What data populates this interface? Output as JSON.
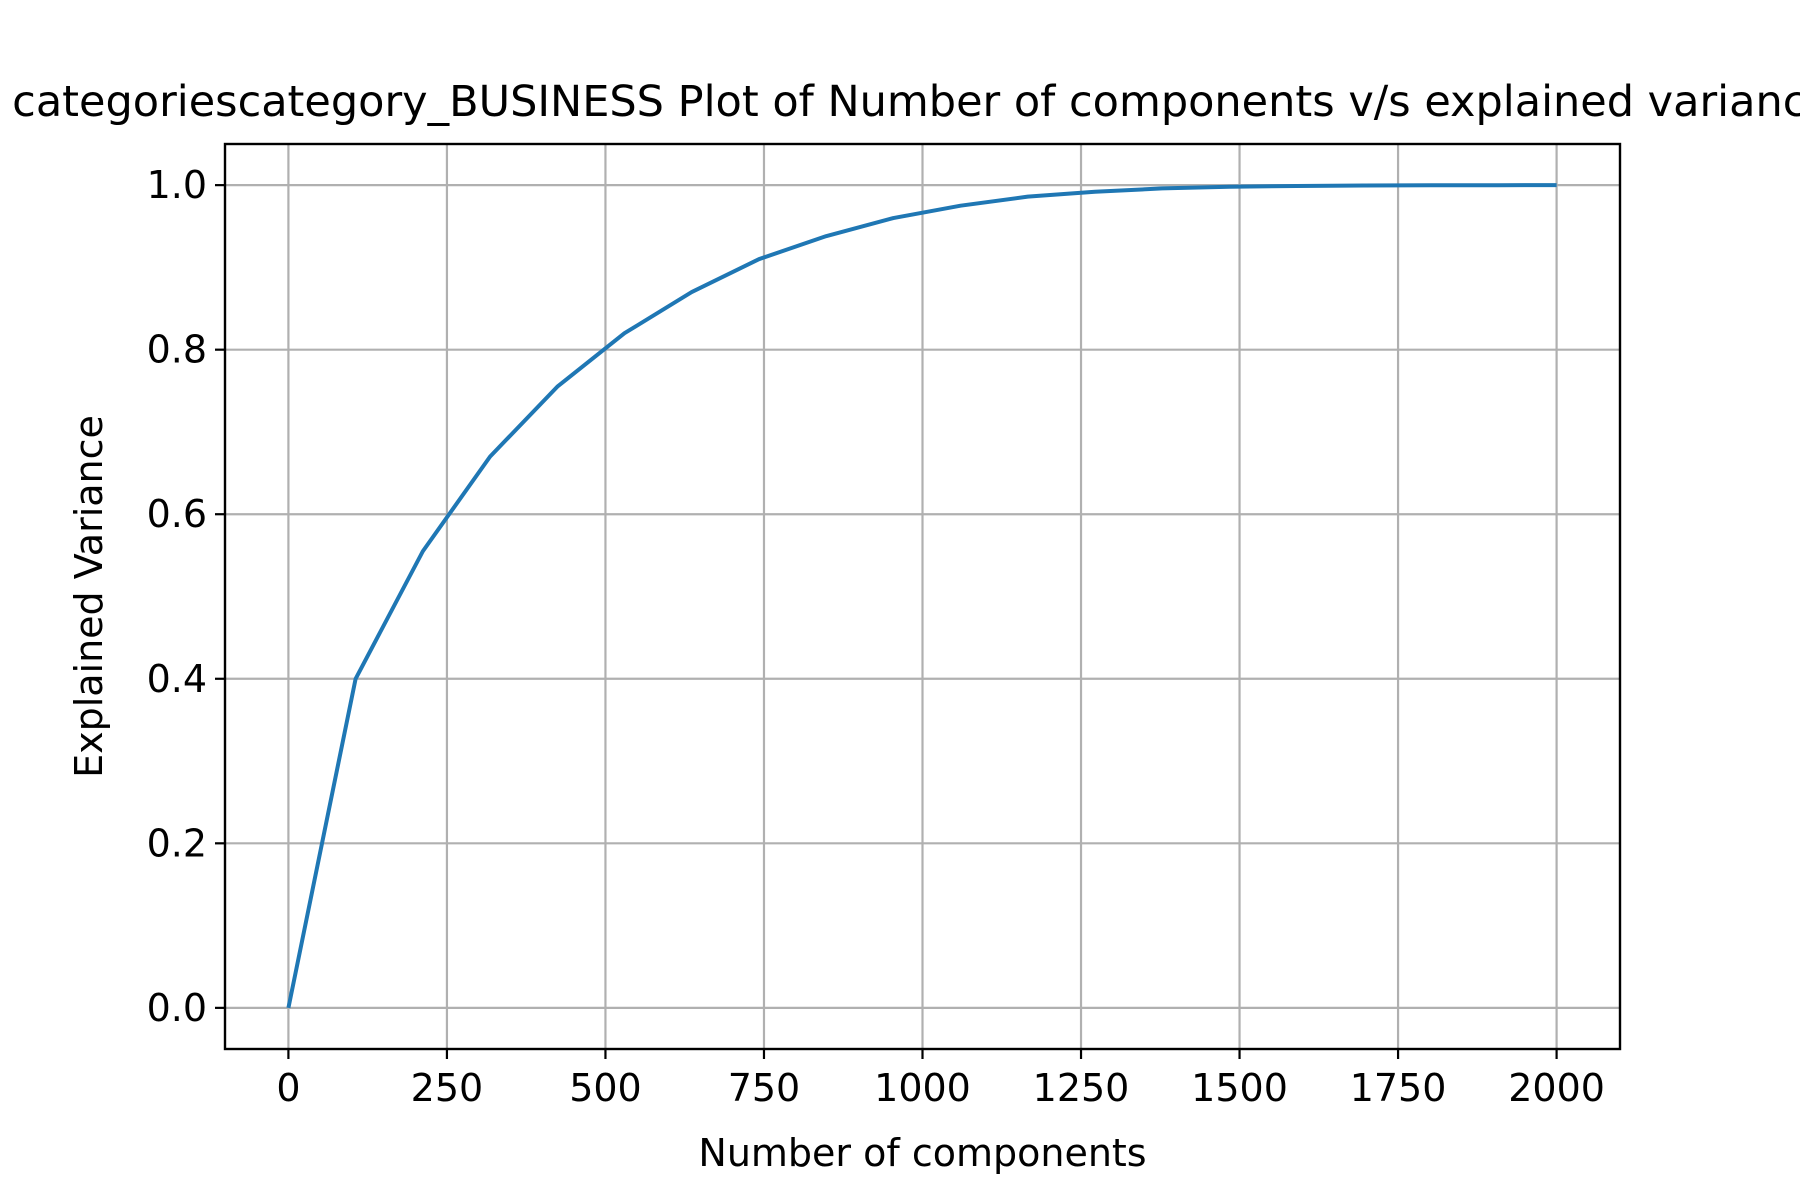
{
  "chart_data": {
    "type": "line",
    "title": "categoriescategory_BUSINESS Plot of Number of components v/s explained variance",
    "xlabel": "Number of components",
    "ylabel": "Explained Variance",
    "xlim": [
      -100,
      2100
    ],
    "ylim": [
      -0.05,
      1.05
    ],
    "x_ticks": [
      0,
      250,
      500,
      750,
      1000,
      1250,
      1500,
      1750,
      2000
    ],
    "x_tick_labels": [
      "0",
      "250",
      "500",
      "750",
      "1000",
      "1250",
      "1500",
      "1750",
      "2000"
    ],
    "y_ticks": [
      0.0,
      0.2,
      0.4,
      0.6,
      0.8,
      1.0
    ],
    "y_tick_labels": [
      "0.0",
      "0.2",
      "0.4",
      "0.6",
      "0.8",
      "1.0"
    ],
    "grid": true,
    "series": [
      {
        "color": "#1f77b4",
        "x": [
          0,
          106,
          212,
          318,
          424,
          530,
          636,
          742,
          848,
          954,
          1060,
          1166,
          1272,
          1378,
          1484,
          1590,
          1696,
          1802,
          1908,
          2000
        ],
        "y": [
          0.0,
          0.4,
          0.555,
          0.67,
          0.755,
          0.82,
          0.87,
          0.91,
          0.938,
          0.96,
          0.975,
          0.986,
          0.992,
          0.996,
          0.998,
          0.999,
          0.9995,
          0.9998,
          0.9999,
          1.0
        ]
      }
    ]
  },
  "colors": {
    "grid": "#b0b0b0",
    "spine": "#000000"
  }
}
